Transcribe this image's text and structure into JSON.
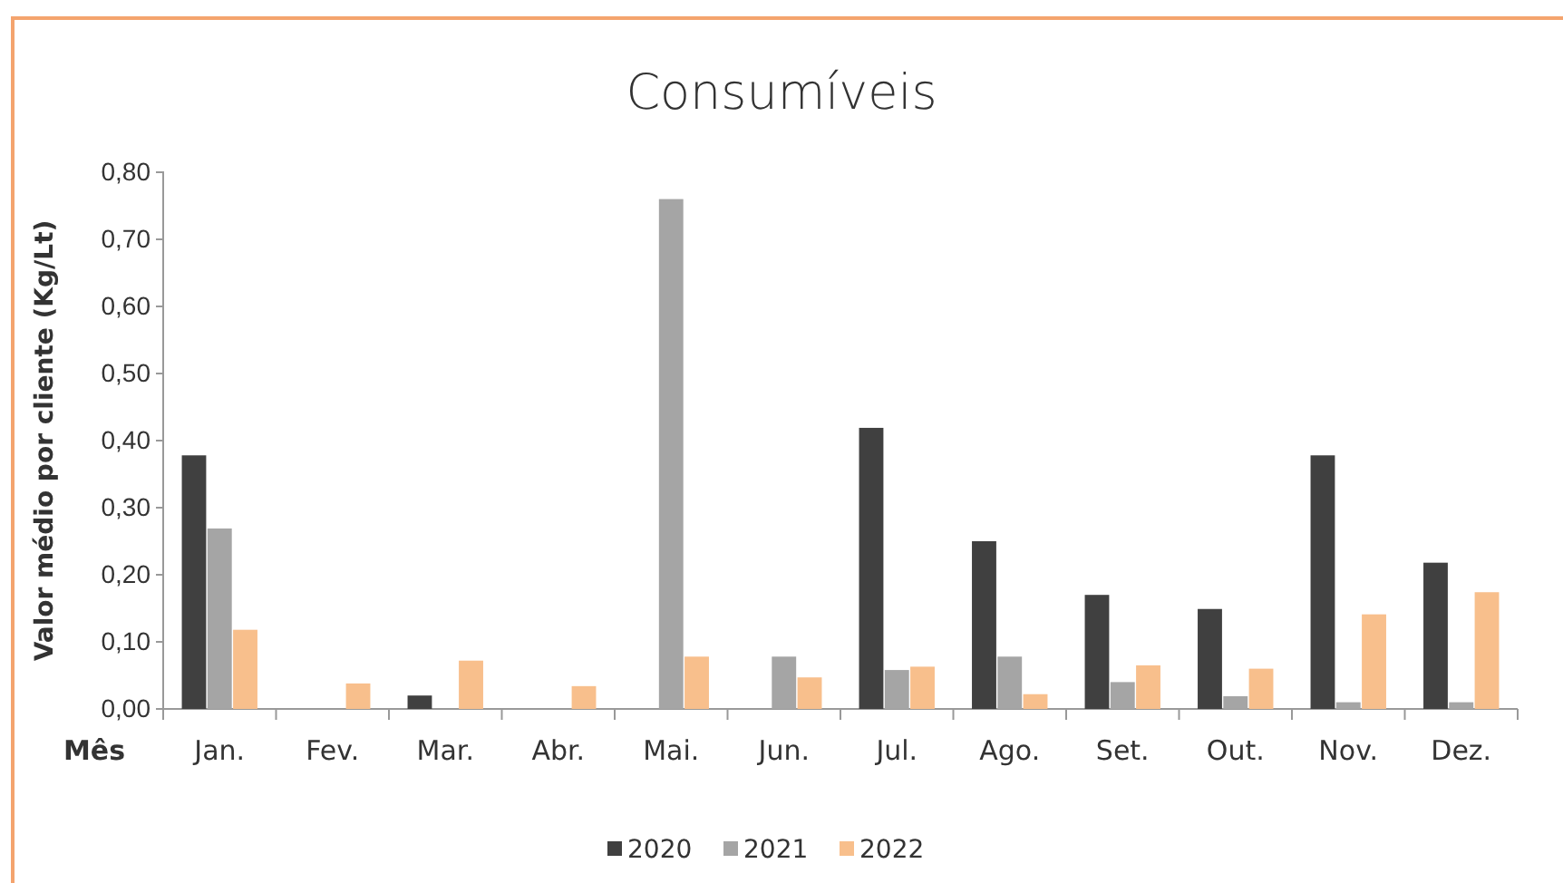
{
  "chart_data": {
    "type": "bar",
    "title": "Consumíveis",
    "ylabel": "Valor médio por cliente (Kg/Lt)",
    "xlabel": "Mês",
    "categories": [
      "Jan.",
      "Fev.",
      "Mar.",
      "Abr.",
      "Mai.",
      "Jun.",
      "Jul.",
      "Ago.",
      "Set.",
      "Out.",
      "Nov.",
      "Dez."
    ],
    "series": [
      {
        "name": "2020",
        "color": "#404040",
        "values": [
          0.378,
          null,
          0.02,
          null,
          null,
          null,
          0.419,
          0.25,
          0.17,
          0.149,
          0.378,
          0.218
        ]
      },
      {
        "name": "2021",
        "color": "#a5a5a5",
        "values": [
          0.269,
          null,
          null,
          null,
          0.76,
          0.078,
          0.058,
          0.078,
          0.04,
          0.019,
          0.01,
          0.01
        ]
      },
      {
        "name": "2022",
        "color": "#f8bf8c",
        "values": [
          0.118,
          0.038,
          0.072,
          0.034,
          0.078,
          0.047,
          0.063,
          0.022,
          0.065,
          0.06,
          0.141,
          0.174
        ]
      }
    ],
    "ylim": [
      0,
      0.8
    ],
    "yticks": [
      {
        "value": 0,
        "label": "0,00"
      },
      {
        "value": 0.1,
        "label": "0,10"
      },
      {
        "value": 0.2,
        "label": "0,20"
      },
      {
        "value": 0.3,
        "label": "0,30"
      },
      {
        "value": 0.4,
        "label": "0,40"
      },
      {
        "value": 0.5,
        "label": "0,50"
      },
      {
        "value": 0.6,
        "label": "0,60"
      },
      {
        "value": 0.7,
        "label": "0,70"
      },
      {
        "value": 0.8,
        "label": "0,80"
      }
    ],
    "grid": false,
    "legend": "bottom"
  }
}
